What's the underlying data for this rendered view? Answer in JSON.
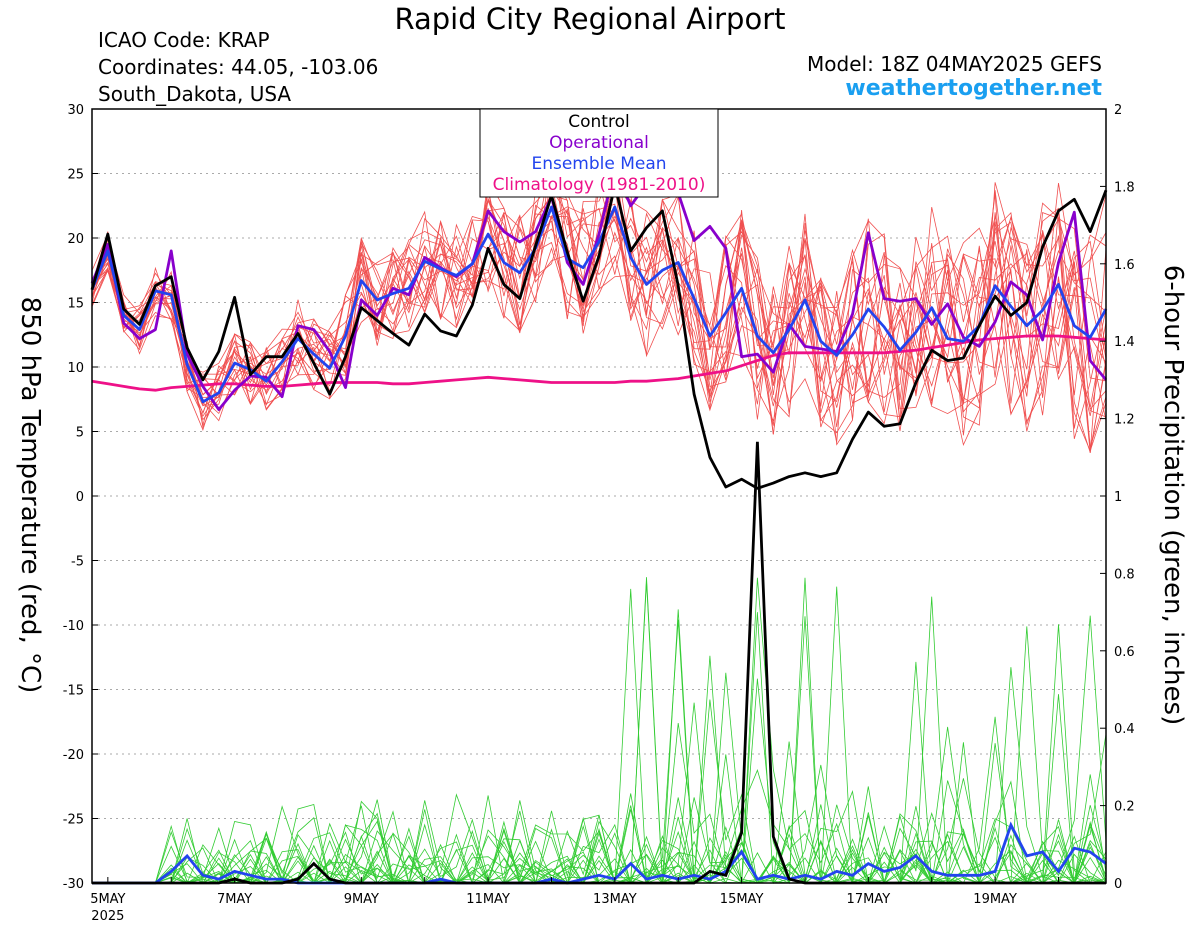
{
  "header": {
    "title": "Rapid City Regional Airport",
    "icao": "ICAO Code: KRAP",
    "coords": "Coordinates: 44.05, -103.06",
    "region": "South_Dakota, USA",
    "model": "Model: 18Z 04MAY2025 GEFS",
    "site": "weathertogether.net"
  },
  "chart_data": {
    "type": "line",
    "ylabel_left": "850 hPa Temperature (red, °C)",
    "ylabel_right": "6-hour Precipitation (green, inches)",
    "ylim_left": [
      -30,
      30
    ],
    "ylim_right": [
      0,
      2
    ],
    "yticks_left": [
      "30",
      "25",
      "20",
      "15",
      "10",
      "5",
      "0",
      "-5",
      "-10",
      "-15",
      "-20",
      "-25",
      "-30"
    ],
    "yticks_right": [
      "2",
      "1.8",
      "1.6",
      "1.4",
      "1.2",
      "1",
      "0.8",
      "0.6",
      "0.4",
      "0.2",
      "0"
    ],
    "xlim_days": [
      4.75,
      20.75
    ],
    "xticks": [
      {
        "day": 5,
        "label": "5MAY",
        "label2": "2025"
      },
      {
        "day": 7,
        "label": "7MAY"
      },
      {
        "day": 9,
        "label": "9MAY"
      },
      {
        "day": 11,
        "label": "11MAY"
      },
      {
        "day": 13,
        "label": "13MAY"
      },
      {
        "day": 15,
        "label": "15MAY"
      },
      {
        "day": 17,
        "label": "17MAY"
      },
      {
        "day": 19,
        "label": "19MAY"
      }
    ],
    "legend": {
      "placement": "top-center",
      "entries": [
        {
          "label": "Control",
          "color": "#000000"
        },
        {
          "label": "Operational",
          "color": "#8800cc"
        },
        {
          "label": "Ensemble Mean",
          "color": "#2244ee"
        },
        {
          "label": "Climatology (1981-2010)",
          "color": "#ee1188"
        }
      ]
    },
    "colors": {
      "members_temp": "#f05050",
      "members_precip": "#33cc33",
      "grid": "#aaaaaa"
    },
    "x": [
      4.75,
      5,
      5.25,
      5.5,
      5.75,
      6,
      6.25,
      6.5,
      6.75,
      7,
      7.25,
      7.5,
      7.75,
      8,
      8.25,
      8.5,
      8.75,
      9,
      9.25,
      9.5,
      9.75,
      10,
      10.25,
      10.5,
      10.75,
      11,
      11.25,
      11.5,
      11.75,
      12,
      12.25,
      12.5,
      12.75,
      13,
      13.25,
      13.5,
      13.75,
      14,
      14.25,
      14.5,
      14.75,
      15,
      15.25,
      15.5,
      15.75,
      16,
      16.25,
      16.5,
      16.75,
      17,
      17.25,
      17.5,
      17.75,
      18,
      18.25,
      18.5,
      18.75,
      19,
      19.25,
      19.5,
      19.75,
      20,
      20.25,
      20.5,
      20.75
    ],
    "series_temp": [
      {
        "name": "Control",
        "values": [
          16,
          20.3,
          14.5,
          13.3,
          16.3,
          17,
          11.5,
          9,
          11.2,
          15.4,
          9.4,
          10.8,
          10.8,
          12.6,
          10.3,
          7.9,
          10.8,
          14.6,
          13.6,
          12.6,
          11.7,
          14.1,
          12.8,
          12.4,
          14.8,
          19.2,
          16.4,
          15.3,
          19.4,
          23.3,
          18.9,
          15.1,
          18.6,
          24.1,
          19,
          20.8,
          22.1,
          16.3,
          7.9,
          3,
          0.7,
          1.3,
          0.6,
          1,
          1.5,
          1.8,
          1.5,
          1.8,
          4.4,
          6.5,
          5.4,
          5.6,
          8.8,
          11.3,
          10.5,
          10.7,
          13.2,
          15.5,
          14,
          15,
          19.3,
          22.1,
          23,
          20.5,
          23.7
        ]
      },
      {
        "name": "Operational",
        "values": [
          16.5,
          19.5,
          13.4,
          12.2,
          12.9,
          19,
          11,
          8.5,
          6.7,
          8.2,
          9.3,
          9.2,
          7.7,
          13.2,
          12.9,
          11.2,
          8.4,
          15.2,
          14,
          16.1,
          15.6,
          18.5,
          17.7,
          17,
          18,
          22.1,
          20.5,
          19.7,
          20.5,
          23.2,
          18.1,
          16.4,
          20.3,
          25.4,
          22.5,
          24.2,
          24.6,
          23.5,
          19.8,
          20.9,
          19.2,
          10.8,
          11,
          9.6,
          13.3,
          11.6,
          11.4,
          11.2,
          14.1,
          20.4,
          15.3,
          15.1,
          15.3,
          13.3,
          14.9,
          12.3,
          11.6,
          13.5,
          16.6,
          15.6,
          12.1,
          18.1,
          22,
          10.5,
          9
        ]
      },
      {
        "name": "Ensemble Mean",
        "values": [
          16,
          19,
          14,
          12.9,
          15.9,
          15.6,
          10.2,
          7.3,
          8,
          10.3,
          9.8,
          8.9,
          10.4,
          12.2,
          11,
          9.9,
          12.4,
          16.7,
          15.2,
          15.7,
          16.1,
          18.2,
          17.6,
          17.1,
          18,
          20.3,
          18.1,
          17.3,
          19.2,
          22.4,
          18.4,
          17.7,
          19.7,
          22.4,
          18.5,
          16.4,
          17.5,
          18.1,
          15.3,
          12.4,
          14.2,
          16.1,
          12.4,
          11.1,
          12.9,
          15.2,
          12,
          10.9,
          12.5,
          14.5,
          13.1,
          11.3,
          12.7,
          14.6,
          12.2,
          12,
          13.2,
          16.3,
          14.7,
          13.2,
          14.4,
          16.4,
          13.2,
          12.3,
          14.5
        ]
      },
      {
        "name": "Climatology (1981-2010)",
        "values": [
          8.9,
          8.7,
          8.5,
          8.3,
          8.2,
          8.4,
          8.5,
          8.6,
          8.7,
          8.7,
          8.6,
          8.5,
          8.5,
          8.6,
          8.7,
          8.8,
          8.8,
          8.8,
          8.8,
          8.7,
          8.7,
          8.8,
          8.9,
          9,
          9.1,
          9.2,
          9.1,
          9,
          8.9,
          8.8,
          8.8,
          8.8,
          8.8,
          8.8,
          8.9,
          8.9,
          9,
          9.1,
          9.3,
          9.5,
          9.7,
          10.1,
          10.5,
          10.9,
          11.1,
          11.1,
          11.1,
          11.1,
          11.1,
          11.1,
          11.1,
          11.2,
          11.3,
          11.5,
          11.7,
          11.9,
          12.1,
          12.2,
          12.3,
          12.4,
          12.4,
          12.4,
          12.3,
          12.2,
          12.1
        ]
      }
    ],
    "series_precip": [
      {
        "name": "Control",
        "values": [
          0,
          0,
          0,
          0,
          0,
          0,
          0,
          0,
          0,
          0.01,
          0,
          0,
          0,
          0.01,
          0.05,
          0.01,
          0,
          0,
          0,
          0,
          0,
          0,
          0,
          0,
          0,
          0,
          0,
          0,
          0,
          0,
          0,
          0,
          0,
          0,
          0,
          0,
          0,
          0,
          0,
          0.03,
          0.02,
          0.13,
          1.14,
          0.12,
          0.01,
          0,
          0,
          0,
          0,
          0,
          0,
          0,
          0,
          0,
          0,
          0,
          0,
          0,
          0,
          0,
          0,
          0,
          0,
          0,
          0
        ]
      },
      {
        "name": "Ensemble Mean",
        "values": [
          0,
          0,
          0,
          0,
          0,
          0.03,
          0.07,
          0.02,
          0.01,
          0.03,
          0.02,
          0.01,
          0.01,
          0,
          0,
          0,
          0,
          0,
          0,
          0,
          0,
          0,
          0.01,
          0,
          0,
          0,
          0,
          0,
          0,
          0.01,
          0,
          0.01,
          0.02,
          0.01,
          0.05,
          0.01,
          0.02,
          0.01,
          0.02,
          0.01,
          0.03,
          0.08,
          0.01,
          0.02,
          0.01,
          0.02,
          0.01,
          0.03,
          0.02,
          0.05,
          0.03,
          0.04,
          0.07,
          0.03,
          0.02,
          0.02,
          0.02,
          0.03,
          0.15,
          0.07,
          0.08,
          0.03,
          0.09,
          0.08,
          0.05
        ]
      }
    ]
  }
}
